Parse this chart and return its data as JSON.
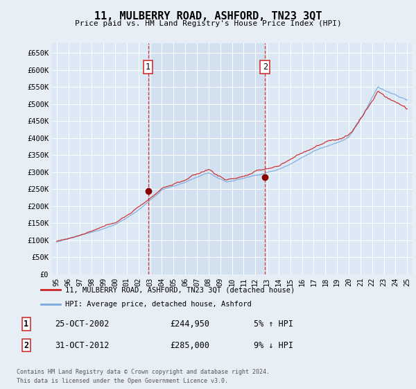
{
  "title": "11, MULBERRY ROAD, ASHFORD, TN23 3QT",
  "subtitle": "Price paid vs. HM Land Registry's House Price Index (HPI)",
  "background_color": "#e8eef5",
  "plot_bg_color": "#dce8f4",
  "plot_bg_between": "#ccdcee",
  "grid_color": "#c8d8e8",
  "ylim": [
    0,
    680000
  ],
  "yticks": [
    0,
    50000,
    100000,
    150000,
    200000,
    250000,
    300000,
    350000,
    400000,
    450000,
    500000,
    550000,
    600000,
    650000
  ],
  "ytick_labels": [
    "£0",
    "£50K",
    "£100K",
    "£150K",
    "£200K",
    "£250K",
    "£300K",
    "£350K",
    "£400K",
    "£450K",
    "£500K",
    "£550K",
    "£600K",
    "£650K"
  ],
  "sale1_x": 2002.82,
  "sale1_y": 244950,
  "sale2_x": 2012.84,
  "sale2_y": 285000,
  "sale1_date": "25-OCT-2002",
  "sale1_price": "£244,950",
  "sale1_hpi": "5% ↑ HPI",
  "sale2_date": "31-OCT-2012",
  "sale2_price": "£285,000",
  "sale2_hpi": "9% ↓ HPI",
  "legend_line1": "11, MULBERRY ROAD, ASHFORD, TN23 3QT (detached house)",
  "legend_line2": "HPI: Average price, detached house, Ashford",
  "footer1": "Contains HM Land Registry data © Crown copyright and database right 2024.",
  "footer2": "This data is licensed under the Open Government Licence v3.0.",
  "hpi_line_color": "#7aaadd",
  "price_line_color": "#cc2222",
  "dashed_line_color": "#cc2222",
  "xlim_left": 1994.6,
  "xlim_right": 2025.4
}
